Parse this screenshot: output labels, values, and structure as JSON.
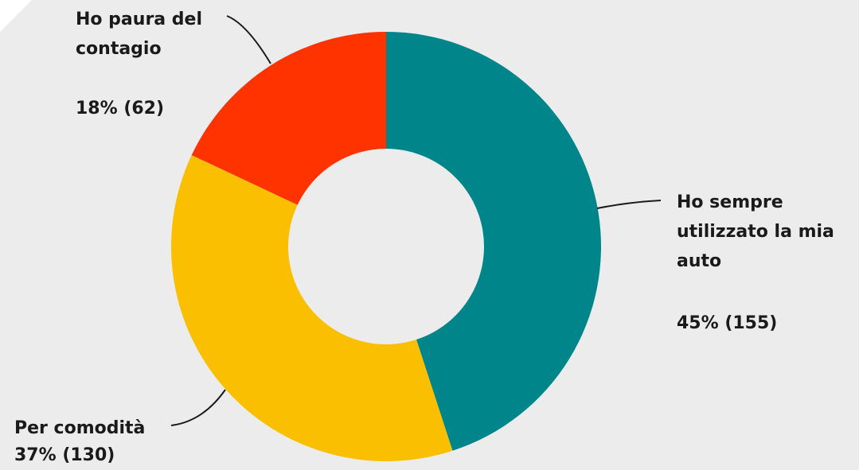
{
  "chart_data": {
    "type": "donut",
    "categories": [
      "Ho sempre utilizzato la mia auto",
      "Per comodità",
      "Ho paura del contagio"
    ],
    "values": [
      45,
      37,
      18
    ],
    "value_labels": [
      "45% (155)",
      "37% (130)",
      "18% (62)"
    ],
    "colors": [
      "#00868a",
      "#f9bf00",
      "#ff3300"
    ]
  }
}
